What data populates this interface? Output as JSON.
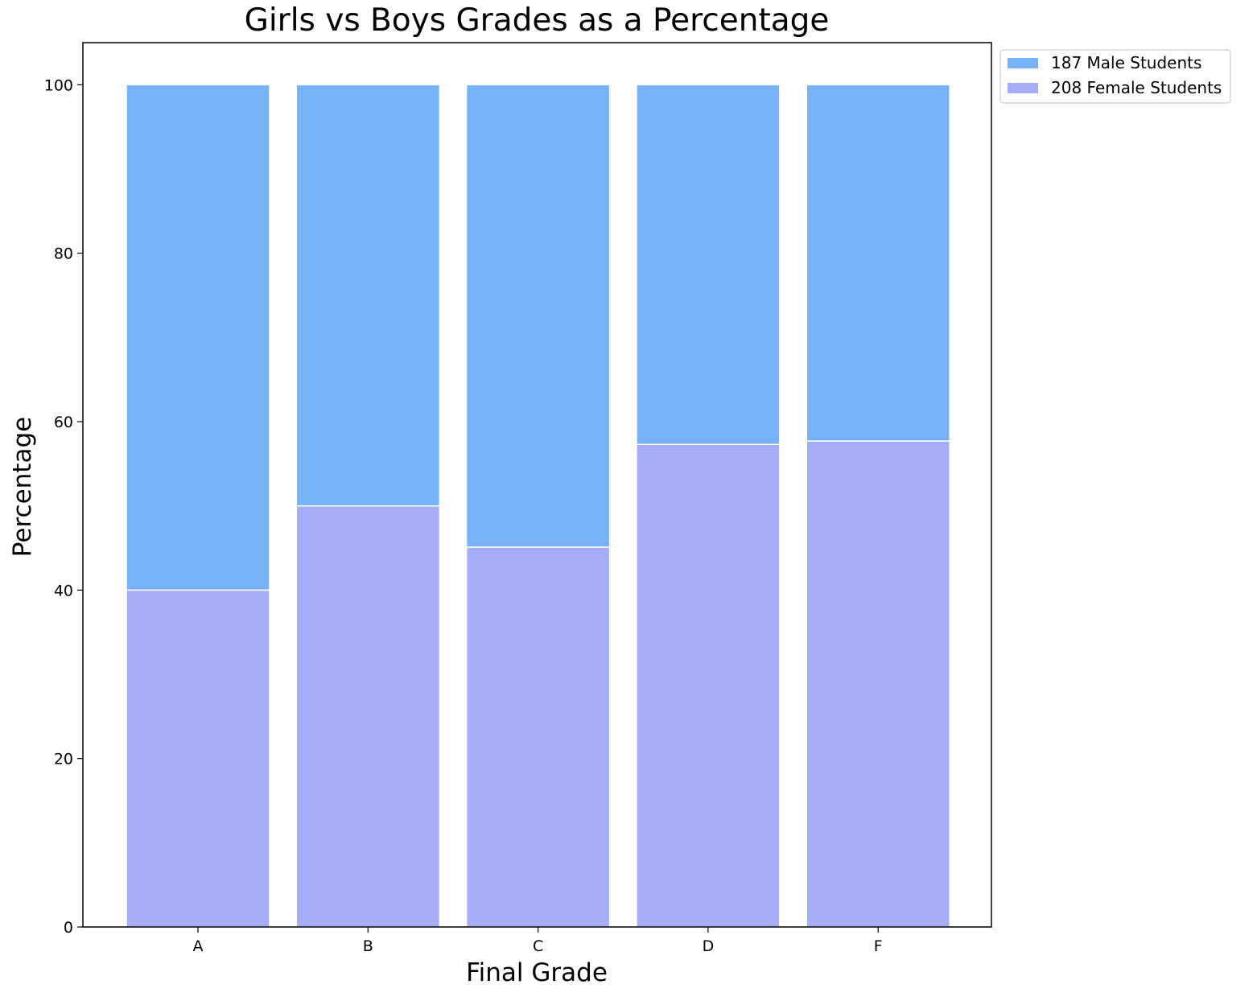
{
  "chart_data": {
    "type": "bar",
    "stacked": true,
    "title": "Girls vs Boys Grades as a Percentage",
    "xlabel": "Final Grade",
    "ylabel": "Percentage",
    "categories": [
      "A",
      "B",
      "C",
      "D",
      "F"
    ],
    "ylim": [
      0,
      105
    ],
    "yticks": [
      0,
      20,
      40,
      60,
      80,
      100
    ],
    "grid": false,
    "legend_position": "outside-top-right",
    "series": [
      {
        "name": "208 Female Students",
        "color": "#a6adf7",
        "values": [
          40.0,
          50.0,
          45.1,
          57.3,
          57.7
        ]
      },
      {
        "name": "187 Male Students",
        "color": "#77b2f7",
        "values": [
          60.0,
          50.0,
          54.9,
          42.7,
          42.3
        ]
      }
    ],
    "legend_order": [
      "187 Male Students",
      "208 Female Students"
    ]
  }
}
